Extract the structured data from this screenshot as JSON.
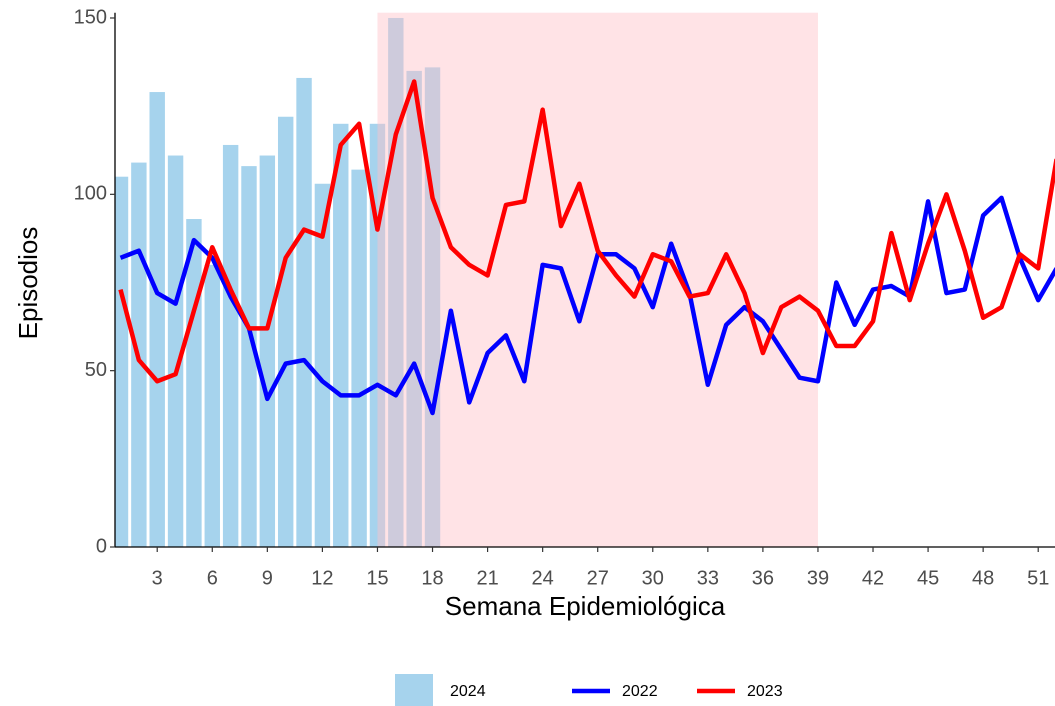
{
  "chart_data": {
    "type": "combo",
    "x_label": "Semana Epidemiológica",
    "y_label": "Episodios",
    "x": [
      1,
      2,
      3,
      4,
      5,
      6,
      7,
      8,
      9,
      10,
      11,
      12,
      13,
      14,
      15,
      16,
      17,
      18,
      19,
      20,
      21,
      22,
      23,
      24,
      25,
      26,
      27,
      28,
      29,
      30,
      31,
      32,
      33,
      34,
      35,
      36,
      37,
      38,
      39,
      40,
      41,
      42,
      43,
      44,
      45,
      46,
      47,
      48,
      49,
      50,
      51,
      52
    ],
    "series": [
      {
        "name": "2024",
        "type": "bar",
        "color": "#a6d3ed",
        "values": [
          105,
          109,
          129,
          111,
          93,
          80,
          114,
          108,
          111,
          122,
          133,
          103,
          120,
          107,
          120,
          150,
          135,
          136,
          null,
          null,
          null,
          null,
          null,
          null,
          null,
          null,
          null,
          null,
          null,
          null,
          null,
          null,
          null,
          null,
          null,
          null,
          null,
          null,
          null,
          null,
          null,
          null,
          null,
          null,
          null,
          null,
          null,
          null,
          null,
          null,
          null,
          null
        ]
      },
      {
        "name": "2022",
        "type": "line",
        "color": "#0000ff",
        "values": [
          82,
          84,
          72,
          69,
          87,
          82,
          71,
          62,
          42,
          52,
          53,
          47,
          43,
          43,
          46,
          43,
          52,
          38,
          67,
          41,
          55,
          60,
          47,
          80,
          79,
          64,
          83,
          83,
          79,
          68,
          86,
          72,
          46,
          63,
          68,
          64,
          56,
          48,
          47,
          75,
          63,
          73,
          74,
          71,
          98,
          72,
          73,
          94,
          99,
          82,
          70,
          79
        ]
      },
      {
        "name": "2023",
        "type": "line",
        "color": "#ff0000",
        "values": [
          73,
          53,
          47,
          49,
          67,
          85,
          73,
          62,
          62,
          82,
          90,
          88,
          114,
          120,
          90,
          117,
          132,
          99,
          85,
          80,
          77,
          97,
          98,
          124,
          91,
          103,
          84,
          77,
          71,
          83,
          81,
          71,
          72,
          83,
          72,
          55,
          68,
          71,
          67,
          57,
          57,
          64,
          89,
          70,
          86,
          100,
          84,
          65,
          68,
          83,
          79,
          110
        ]
      }
    ],
    "shade": {
      "xmin": 15,
      "xmax": 39,
      "color": "#ffc0c8"
    },
    "xlim": [
      0.7,
      51.9
    ],
    "xticks": [
      3,
      6,
      9,
      12,
      15,
      18,
      21,
      24,
      27,
      30,
      33,
      36,
      39,
      42,
      45,
      48,
      51
    ],
    "ylim": [
      0,
      151.5
    ],
    "yticks": [
      0,
      50,
      100,
      150
    ],
    "grid": false,
    "legend": "bottom"
  }
}
